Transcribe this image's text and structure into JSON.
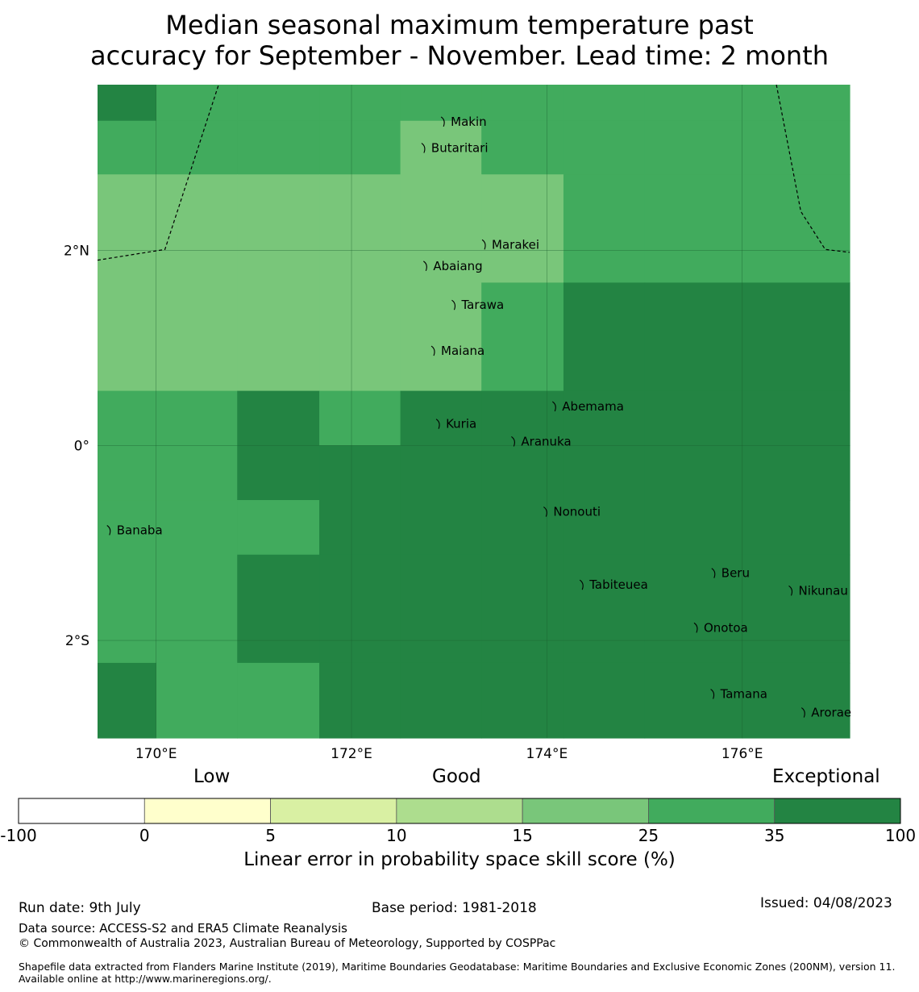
{
  "title": {
    "line1": "Median seasonal maximum temperature past",
    "line2": "accuracy for September - November. Lead time: 2 month"
  },
  "map": {
    "lon_range": [
      169.4,
      177.1
    ],
    "lat_range": [
      -3.0,
      3.7
    ],
    "grid_lons": [
      170,
      172,
      174,
      176
    ],
    "grid_lats": [
      2,
      0,
      -2
    ],
    "lon_tick_labels": [
      "170°E",
      "172°E",
      "174°E",
      "176°E"
    ],
    "lat_tick_labels": [
      "2°N",
      "0°",
      "2°S"
    ],
    "color_by_class": {
      "m": "#79c67a",
      "s": "#41ab5d",
      "d": "#238443"
    },
    "grid_rows": [
      {
        "lat_top": 3.7,
        "lat_bottom": 3.33,
        "cols": [
          "d",
          "s",
          "s",
          "s",
          "s",
          "s",
          "s",
          "s",
          "s"
        ]
      },
      {
        "lat_top": 3.33,
        "lat_bottom": 2.78,
        "cols": [
          "s",
          "s",
          "s",
          "s",
          "m",
          "s",
          "s",
          "s",
          "s"
        ]
      },
      {
        "lat_top": 2.78,
        "lat_bottom": 1.67,
        "cols": [
          "m",
          "m",
          "m",
          "m",
          "m",
          "m",
          "s",
          "s",
          "s"
        ]
      },
      {
        "lat_top": 1.67,
        "lat_bottom": 0.56,
        "cols": [
          "m",
          "m",
          "m",
          "m",
          "m",
          "s",
          "d",
          "d",
          "d"
        ]
      },
      {
        "lat_top": 0.56,
        "lat_bottom": 0.0,
        "cols": [
          "s",
          "s",
          "d",
          "s",
          "d",
          "d",
          "d",
          "d",
          "d"
        ]
      },
      {
        "lat_top": 0.0,
        "lat_bottom": -0.56,
        "cols": [
          "s",
          "s",
          "d",
          "d",
          "d",
          "d",
          "d",
          "d",
          "d"
        ]
      },
      {
        "lat_top": -0.56,
        "lat_bottom": -1.12,
        "cols": [
          "s",
          "s",
          "s",
          "d",
          "d",
          "d",
          "d",
          "d",
          "d"
        ]
      },
      {
        "lat_top": -1.12,
        "lat_bottom": -2.23,
        "cols": [
          "s",
          "s",
          "d",
          "d",
          "d",
          "d",
          "d",
          "d",
          "d"
        ]
      },
      {
        "lat_top": -2.23,
        "lat_bottom": -3.0,
        "cols": [
          "d",
          "s",
          "s",
          "d",
          "d",
          "d",
          "d",
          "d",
          "d"
        ]
      }
    ],
    "grid_col_edges": [
      169.4,
      170.0,
      170.83,
      171.67,
      172.5,
      173.33,
      174.17,
      175.0,
      176.0,
      177.1
    ],
    "islands": [
      {
        "name": "Makin",
        "lon": 172.95,
        "lat": 3.32
      },
      {
        "name": "Butaritari",
        "lon": 172.75,
        "lat": 3.05
      },
      {
        "name": "Marakei",
        "lon": 173.37,
        "lat": 2.06
      },
      {
        "name": "Abaiang",
        "lon": 172.77,
        "lat": 1.84
      },
      {
        "name": "Tarawa",
        "lon": 173.06,
        "lat": 1.44
      },
      {
        "name": "Maiana",
        "lon": 172.85,
        "lat": 0.97
      },
      {
        "name": "Abemama",
        "lon": 174.09,
        "lat": 0.4
      },
      {
        "name": "Kuria",
        "lon": 172.9,
        "lat": 0.22
      },
      {
        "name": "Aranuka",
        "lon": 173.67,
        "lat": 0.04
      },
      {
        "name": "Banaba",
        "lon": 169.53,
        "lat": -0.87
      },
      {
        "name": "Nonouti",
        "lon": 174.0,
        "lat": -0.68
      },
      {
        "name": "Beru",
        "lon": 175.72,
        "lat": -1.31
      },
      {
        "name": "Tabiteuea",
        "lon": 174.37,
        "lat": -1.43
      },
      {
        "name": "Nikunau",
        "lon": 176.51,
        "lat": -1.49
      },
      {
        "name": "Onotoa",
        "lon": 175.54,
        "lat": -1.87
      },
      {
        "name": "Tamana",
        "lon": 175.71,
        "lat": -2.55
      },
      {
        "name": "Arorae",
        "lon": 176.64,
        "lat": -2.74
      }
    ],
    "eez_boundaries": [
      [
        [
          169.4,
          1.9
        ],
        [
          170.09,
          2.01
        ],
        [
          170.64,
          3.7
        ]
      ],
      [
        [
          176.35,
          3.7
        ],
        [
          176.6,
          2.4
        ],
        [
          176.85,
          2.01
        ],
        [
          177.1,
          1.98
        ]
      ]
    ]
  },
  "colorbar": {
    "categories": [
      "Low",
      "Good",
      "Exceptional"
    ],
    "bins": [
      {
        "from": "-100",
        "to": "0",
        "color": "#ffffff"
      },
      {
        "from": "0",
        "to": "5",
        "color": "#ffffcc"
      },
      {
        "from": "5",
        "to": "10",
        "color": "#d9f0a3"
      },
      {
        "from": "10",
        "to": "15",
        "color": "#addd8e"
      },
      {
        "from": "15",
        "to": "25",
        "color": "#79c67a"
      },
      {
        "from": "25",
        "to": "35",
        "color": "#41ab5d"
      },
      {
        "from": "35",
        "to": "100",
        "color": "#238443"
      }
    ],
    "tick_labels": [
      "-100",
      "0",
      "5",
      "10",
      "15",
      "25",
      "35",
      "100"
    ],
    "title": "Linear error in probability space skill score (%)"
  },
  "footer": {
    "run_date": "Run date: 9th July",
    "base_period": "Base period: 1981-2018",
    "issued": "Issued: 04/08/2023",
    "data_source": "Data source: ACCESS-S2 and ERA5 Climate Reanalysis",
    "copyright": "© Commonwealth of Australia 2023, Australian Bureau of Meteorology, Supported by COSPPac",
    "shapefile": "Shapefile data extracted from Flanders Marine Institute (2019), Maritime Boundaries Geodatabase: Maritime Boundaries and Exclusive Economic Zones (200NM), version 11. Available online at http://www.marineregions.org/."
  }
}
